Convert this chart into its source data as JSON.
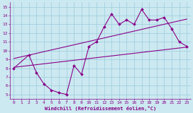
{
  "bg_color": "#cce8f0",
  "line_color": "#880088",
  "grid_color": "#99ccdd",
  "xlim": [
    -0.5,
    23.5
  ],
  "ylim": [
    4.5,
    15.5
  ],
  "xticks": [
    0,
    1,
    2,
    3,
    4,
    5,
    6,
    7,
    8,
    9,
    10,
    11,
    12,
    13,
    14,
    15,
    16,
    17,
    18,
    19,
    20,
    21,
    22,
    23
  ],
  "yticks": [
    5,
    6,
    7,
    8,
    9,
    10,
    11,
    12,
    13,
    14,
    15
  ],
  "xlabel": "Windchill (Refroidissement éolien,°C)",
  "jagged_x": [
    0,
    2,
    3,
    4,
    5,
    6,
    7,
    8,
    9,
    10,
    11,
    12,
    13,
    14,
    15,
    16,
    17,
    18,
    19,
    20,
    21,
    22,
    23
  ],
  "jagged_y": [
    8.0,
    9.5,
    7.5,
    6.2,
    5.5,
    5.2,
    5.0,
    8.3,
    7.3,
    10.5,
    11.0,
    12.7,
    14.2,
    13.0,
    13.5,
    13.0,
    14.7,
    13.5,
    13.5,
    13.8,
    12.5,
    11.0,
    10.5
  ],
  "upper_line_x": [
    0,
    23
  ],
  "upper_line_y": [
    9.1,
    13.6
  ],
  "lower_line_x": [
    0,
    23
  ],
  "lower_line_y": [
    8.1,
    10.4
  ],
  "tick_fontsize": 4.5,
  "xlabel_fontsize": 5.0
}
